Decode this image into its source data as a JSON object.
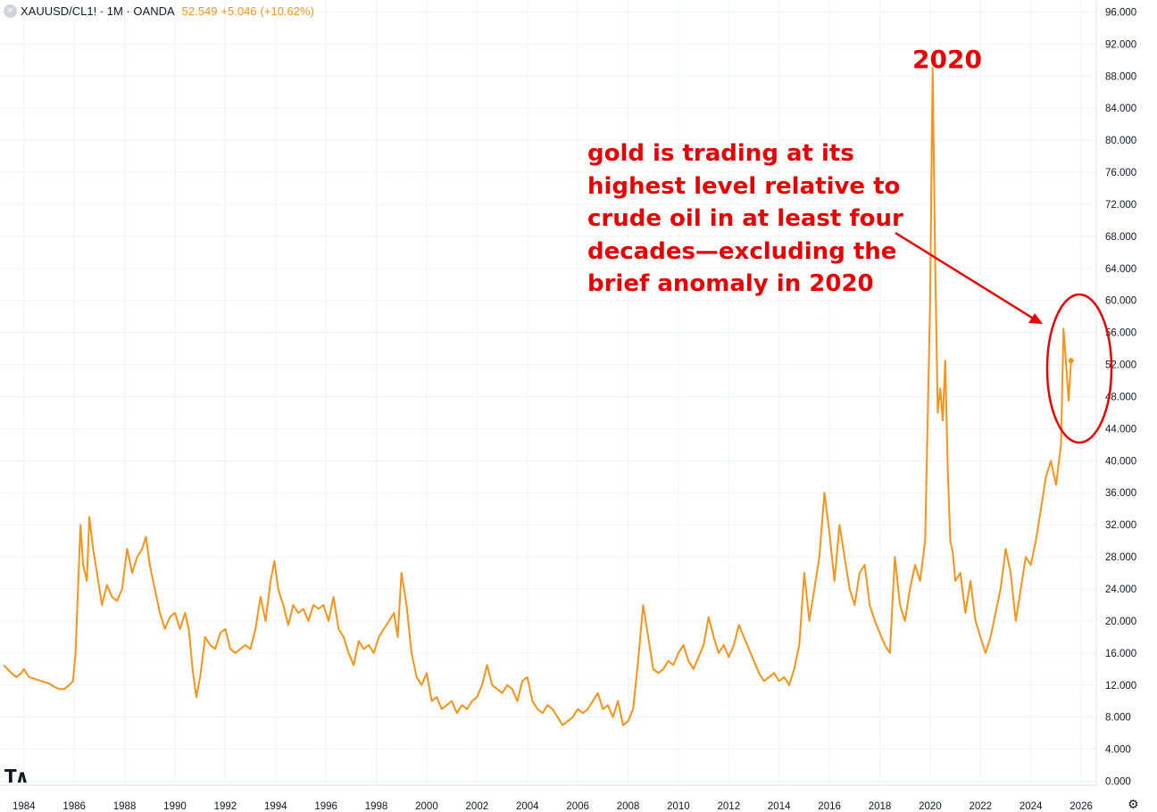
{
  "header": {
    "symbol": "XAUUSD/CL1! · 1M · OANDA",
    "last_value": "52.549",
    "change": "+5.046",
    "change_pct": "(+10.62%)"
  },
  "annotations": {
    "main_text": "gold is trading at its highest level relative to crude oil in at least four decades—excluding the brief anomaly in 2020",
    "peak_label": "2020"
  },
  "colors": {
    "series": "#f7931a",
    "annotation": "#e60000",
    "grid": "#f0f3fa",
    "text": "#131722"
  },
  "icons": {
    "header_close": "close-icon",
    "logo": "tradingview-logo",
    "settings": "gear-icon"
  },
  "chart_data": {
    "type": "line",
    "title": "",
    "xlabel": "",
    "ylabel": "",
    "x_ticks": [
      "1984",
      "1986",
      "1988",
      "1990",
      "1992",
      "1994",
      "1996",
      "1998",
      "2000",
      "2002",
      "2004",
      "2006",
      "2008",
      "2010",
      "2012",
      "2014",
      "2016",
      "2018",
      "2020",
      "2022",
      "2024",
      "2026"
    ],
    "y_ticks": [
      "0.000",
      "4.000",
      "8.000",
      "12.000",
      "16.000",
      "20.000",
      "24.000",
      "28.000",
      "32.000",
      "36.000",
      "40.000",
      "44.000",
      "48.000",
      "52.000",
      "56.000",
      "60.000",
      "64.000",
      "68.000",
      "72.000",
      "76.000",
      "80.000",
      "84.000",
      "88.000",
      "92.000",
      "96.000"
    ],
    "xlim": [
      1983.05,
      2026.6
    ],
    "ylim": [
      -0.5,
      97.5
    ],
    "grid": true,
    "series": [
      {
        "color": "#f7931a",
        "x": [
          1983.2,
          1983.5,
          1983.7,
          1983.9,
          1984.0,
          1984.2,
          1984.4,
          1984.7,
          1985.0,
          1985.2,
          1985.4,
          1985.6,
          1985.8,
          1985.95,
          1986.05,
          1986.15,
          1986.25,
          1986.35,
          1986.5,
          1986.6,
          1986.75,
          1986.9,
          1987.1,
          1987.3,
          1987.5,
          1987.7,
          1987.9,
          1988.1,
          1988.3,
          1988.5,
          1988.7,
          1988.85,
          1989.0,
          1989.2,
          1989.4,
          1989.6,
          1989.8,
          1990.0,
          1990.2,
          1990.4,
          1990.55,
          1990.7,
          1990.85,
          1991.0,
          1991.2,
          1991.4,
          1991.6,
          1991.8,
          1992.0,
          1992.2,
          1992.4,
          1992.6,
          1992.8,
          1993.0,
          1993.2,
          1993.4,
          1993.6,
          1993.8,
          1993.95,
          1994.1,
          1994.3,
          1994.5,
          1994.7,
          1994.9,
          1995.1,
          1995.3,
          1995.5,
          1995.7,
          1995.9,
          1996.1,
          1996.3,
          1996.5,
          1996.7,
          1996.9,
          1997.1,
          1997.3,
          1997.5,
          1997.7,
          1997.9,
          1998.1,
          1998.3,
          1998.5,
          1998.7,
          1998.85,
          1999.0,
          1999.2,
          1999.4,
          1999.6,
          1999.8,
          2000.0,
          2000.2,
          2000.4,
          2000.6,
          2000.8,
          2001.0,
          2001.2,
          2001.4,
          2001.6,
          2001.8,
          2002.0,
          2002.2,
          2002.4,
          2002.6,
          2002.8,
          2003.0,
          2003.2,
          2003.4,
          2003.6,
          2003.8,
          2004.0,
          2004.2,
          2004.4,
          2004.6,
          2004.8,
          2005.0,
          2005.2,
          2005.4,
          2005.6,
          2005.8,
          2006.0,
          2006.2,
          2006.4,
          2006.6,
          2006.8,
          2007.0,
          2007.2,
          2007.4,
          2007.6,
          2007.8,
          2008.0,
          2008.2,
          2008.4,
          2008.6,
          2008.8,
          2009.0,
          2009.2,
          2009.4,
          2009.6,
          2009.8,
          2010.0,
          2010.2,
          2010.4,
          2010.6,
          2010.8,
          2011.0,
          2011.2,
          2011.4,
          2011.6,
          2011.8,
          2012.0,
          2012.2,
          2012.4,
          2012.6,
          2012.8,
          2013.0,
          2013.2,
          2013.4,
          2013.6,
          2013.8,
          2014.0,
          2014.2,
          2014.4,
          2014.6,
          2014.8,
          2015.0,
          2015.2,
          2015.4,
          2015.6,
          2015.8,
          2016.0,
          2016.2,
          2016.4,
          2016.6,
          2016.8,
          2017.0,
          2017.2,
          2017.4,
          2017.6,
          2017.8,
          2018.0,
          2018.2,
          2018.4,
          2018.6,
          2018.8,
          2019.0,
          2019.2,
          2019.4,
          2019.6,
          2019.8,
          2020.0,
          2020.1,
          2020.2,
          2020.3,
          2020.4,
          2020.5,
          2020.6,
          2020.7,
          2020.8,
          2020.9,
          2021.0,
          2021.2,
          2021.4,
          2021.6,
          2021.8,
          2022.0,
          2022.2,
          2022.4,
          2022.6,
          2022.8,
          2023.0,
          2023.2,
          2023.4,
          2023.6,
          2023.8,
          2024.0,
          2024.2,
          2024.4,
          2024.6,
          2024.8,
          2025.0,
          2025.2,
          2025.3,
          2025.4,
          2025.5,
          2025.6
        ],
        "y": [
          14.5,
          13.5,
          13.0,
          13.5,
          14.0,
          13.0,
          12.8,
          12.5,
          12.2,
          11.8,
          11.5,
          11.5,
          12.0,
          12.5,
          16.0,
          24.0,
          32.0,
          27.0,
          25.0,
          33.0,
          29.0,
          26.0,
          22.0,
          24.5,
          23.0,
          22.5,
          24.0,
          29.0,
          26.0,
          28.0,
          29.0,
          30.5,
          27.0,
          24.0,
          21.0,
          19.0,
          20.5,
          21.0,
          19.0,
          21.0,
          19.0,
          14.0,
          10.5,
          13.0,
          18.0,
          17.0,
          16.5,
          18.5,
          19.0,
          16.5,
          16.0,
          16.5,
          17.0,
          16.5,
          19.0,
          23.0,
          20.0,
          25.0,
          27.5,
          24.0,
          22.0,
          19.5,
          22.0,
          21.0,
          21.5,
          20.0,
          22.0,
          21.5,
          22.0,
          20.0,
          23.0,
          19.0,
          18.0,
          16.0,
          14.5,
          17.5,
          16.5,
          17.0,
          16.0,
          18.0,
          19.0,
          20.0,
          21.0,
          18.0,
          26.0,
          22.0,
          16.0,
          13.0,
          12.0,
          13.5,
          10.0,
          10.5,
          9.0,
          9.5,
          10.0,
          8.5,
          9.5,
          9.0,
          10.0,
          10.5,
          12.0,
          14.5,
          12.0,
          11.5,
          11.0,
          12.0,
          11.5,
          10.0,
          12.5,
          13.0,
          10.0,
          9.0,
          8.5,
          9.5,
          9.0,
          8.0,
          7.0,
          7.5,
          8.0,
          9.0,
          8.5,
          9.0,
          10.0,
          11.0,
          9.0,
          9.5,
          8.0,
          10.0,
          7.0,
          7.5,
          9.0,
          15.0,
          22.0,
          18.0,
          14.0,
          13.5,
          14.0,
          15.0,
          14.5,
          16.0,
          17.0,
          15.0,
          14.0,
          15.5,
          17.0,
          20.5,
          18.0,
          16.0,
          17.0,
          15.5,
          17.0,
          19.5,
          18.0,
          16.5,
          15.0,
          13.5,
          12.5,
          13.0,
          13.5,
          12.5,
          13.0,
          12.0,
          14.0,
          17.0,
          26.0,
          20.0,
          24.0,
          28.0,
          36.0,
          31.0,
          25.0,
          32.0,
          28.0,
          24.0,
          22.0,
          26.0,
          27.0,
          22.0,
          20.0,
          18.5,
          17.0,
          16.0,
          28.0,
          22.0,
          20.0,
          24.0,
          27.0,
          25.0,
          30.0,
          60.0,
          89.0,
          65.0,
          46.0,
          49.0,
          45.0,
          52.5,
          39.0,
          30.0,
          28.5,
          25.0,
          26.0,
          21.0,
          25.0,
          20.0,
          18.0,
          16.0,
          18.0,
          21.0,
          24.0,
          29.0,
          26.0,
          20.0,
          24.0,
          28.0,
          27.0,
          30.0,
          34.0,
          38.0,
          40.0,
          37.0,
          42.0,
          56.5,
          52.0,
          47.5,
          52.5
        ]
      }
    ]
  }
}
